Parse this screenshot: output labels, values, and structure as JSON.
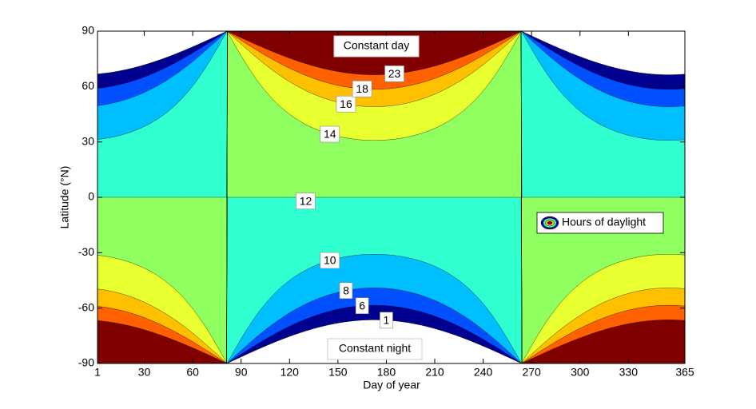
{
  "chart_data": {
    "type": "contour",
    "xlabel": "Day of year",
    "ylabel": "Latitude (°N)",
    "xlim": [
      1,
      365
    ],
    "ylim": [
      -90,
      90
    ],
    "xticks": [
      1,
      30,
      60,
      90,
      120,
      150,
      180,
      210,
      240,
      270,
      300,
      330,
      365
    ],
    "yticks": [
      -90,
      -60,
      -30,
      0,
      30,
      60,
      90
    ],
    "levels": [
      1,
      6,
      8,
      10,
      12,
      14,
      16,
      18,
      23
    ],
    "colors": [
      "#00008f",
      "#0050ff",
      "#00bfff",
      "#30ffd0",
      "#90ff60",
      "#e8ff30",
      "#ffc000",
      "#ff6000",
      "#800000"
    ],
    "annotations": [
      "Constant day",
      "Constant night"
    ],
    "legend": "Hours of daylight"
  }
}
